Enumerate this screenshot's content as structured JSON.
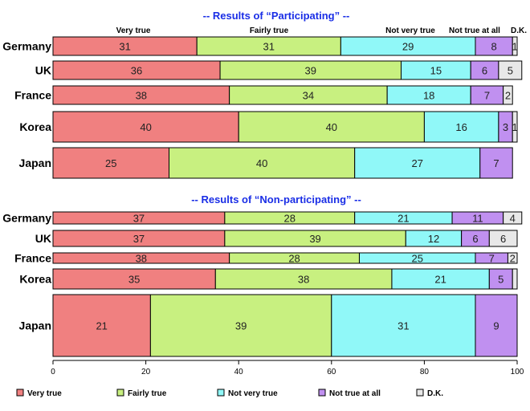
{
  "chart_data": {
    "type": "bar",
    "orientation": "horizontal-stacked",
    "series_names": [
      "Very true",
      "Fairly true",
      "Not very true",
      "Not true at all",
      "D.K."
    ],
    "series_colors": [
      "#f08080",
      "#c8f080",
      "#90f8f8",
      "#c090f0",
      "#e8e8e8"
    ],
    "xlim": [
      0,
      100
    ],
    "xticks": [
      "0",
      "20",
      "40",
      "60",
      "80",
      "100"
    ],
    "legend_position": "bottom",
    "panels": [
      {
        "title": "-- Results of “Participating” --",
        "categories": [
          "Germany",
          "UK",
          "France",
          "Korea",
          "Japan"
        ],
        "values": [
          [
            31,
            31,
            29,
            8,
            1
          ],
          [
            36,
            39,
            15,
            6,
            5
          ],
          [
            38,
            34,
            18,
            7,
            2
          ],
          [
            40,
            40,
            16,
            3,
            1
          ],
          [
            25,
            40,
            27,
            7,
            0
          ]
        ],
        "labels": [
          [
            "31",
            "31",
            "29",
            "8",
            "1"
          ],
          [
            "36",
            "39",
            "15",
            "6",
            "5"
          ],
          [
            "38",
            "34",
            "18",
            "7",
            "2"
          ],
          [
            "40",
            "40",
            "16",
            "3",
            "1"
          ],
          [
            "25",
            "40",
            "27",
            "7",
            ""
          ]
        ]
      },
      {
        "title": "-- Results of “Non-participating” --",
        "categories": [
          "Germany",
          "UK",
          "France",
          "Korea",
          "Japan"
        ],
        "values": [
          [
            37,
            28,
            21,
            11,
            4
          ],
          [
            37,
            39,
            12,
            6,
            6
          ],
          [
            38,
            28,
            25,
            7,
            2
          ],
          [
            35,
            38,
            21,
            5,
            1
          ],
          [
            21,
            39,
            31,
            9,
            0
          ]
        ],
        "labels": [
          [
            "37",
            "28",
            "21",
            "11",
            "4"
          ],
          [
            "37",
            "39",
            "12",
            "6",
            "6"
          ],
          [
            "38",
            "28",
            "25",
            "7",
            "2"
          ],
          [
            "35",
            "38",
            "21",
            "5",
            ""
          ],
          [
            "21",
            "39",
            "31",
            "9",
            ""
          ]
        ]
      }
    ]
  }
}
